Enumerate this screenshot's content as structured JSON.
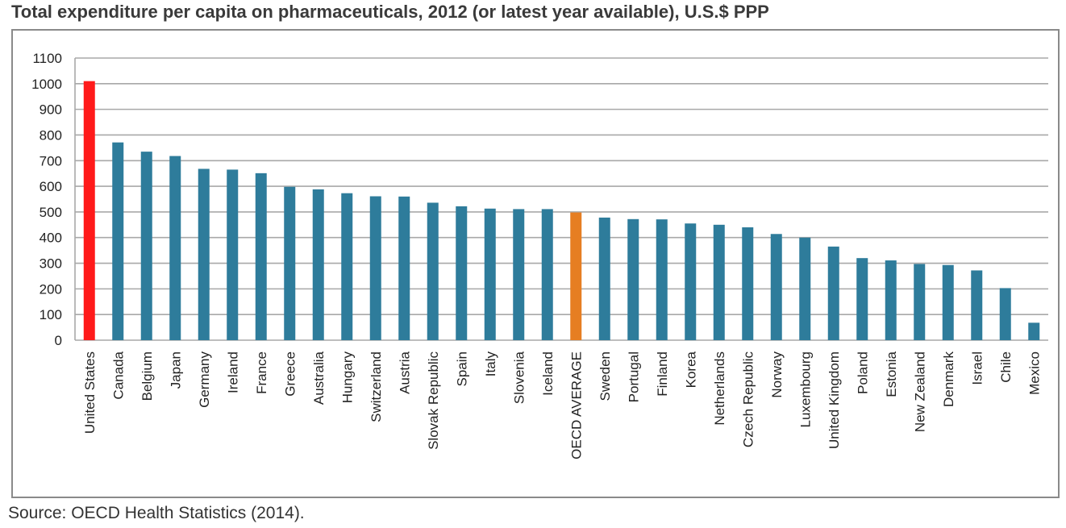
{
  "title": "Total expenditure per capita on pharmaceuticals, 2012 (or latest year available), U.S.$ PPP",
  "source": "Source: OECD Health Statistics (2014).",
  "colors": {
    "default": "#2e7c9b",
    "highlight_us": "#ff1a1a",
    "highlight_avg": "#e67e22",
    "grid": "#a8a8a8",
    "frame": "#8a8a8a"
  },
  "chart_data": {
    "type": "bar",
    "title": "Total expenditure per capita on pharmaceuticals, 2012 (or latest year available), U.S.$ PPP",
    "xlabel": "",
    "ylabel": "",
    "ylim": [
      0,
      1100
    ],
    "yticks": [
      0,
      100,
      200,
      300,
      400,
      500,
      600,
      700,
      800,
      900,
      1000,
      1100
    ],
    "grid": true,
    "categories": [
      "United States",
      "Canada",
      "Belgium",
      "Japan",
      "Germany",
      "Ireland",
      "France",
      "Greece",
      "Australia",
      "Hungary",
      "Switzerland",
      "Austria",
      "Slovak Republic",
      "Spain",
      "Italy",
      "Slovenia",
      "Iceland",
      "OECD AVERAGE",
      "Sweden",
      "Portugal",
      "Finland",
      "Korea",
      "Netherlands",
      "Czech Republic",
      "Norway",
      "Luxembourg",
      "United Kingdom",
      "Poland",
      "Estonia",
      "New Zealand",
      "Denmark",
      "Israel",
      "Chile",
      "Mexico"
    ],
    "values": [
      1010,
      771,
      735,
      718,
      668,
      665,
      651,
      598,
      588,
      573,
      561,
      560,
      536,
      522,
      513,
      511,
      511,
      498,
      478,
      472,
      471,
      455,
      450,
      440,
      414,
      400,
      365,
      320,
      311,
      297,
      293,
      272,
      203,
      68
    ],
    "bar_colors": [
      "#ff1a1a",
      "#2e7c9b",
      "#2e7c9b",
      "#2e7c9b",
      "#2e7c9b",
      "#2e7c9b",
      "#2e7c9b",
      "#2e7c9b",
      "#2e7c9b",
      "#2e7c9b",
      "#2e7c9b",
      "#2e7c9b",
      "#2e7c9b",
      "#2e7c9b",
      "#2e7c9b",
      "#2e7c9b",
      "#2e7c9b",
      "#e67e22",
      "#2e7c9b",
      "#2e7c9b",
      "#2e7c9b",
      "#2e7c9b",
      "#2e7c9b",
      "#2e7c9b",
      "#2e7c9b",
      "#2e7c9b",
      "#2e7c9b",
      "#2e7c9b",
      "#2e7c9b",
      "#2e7c9b",
      "#2e7c9b",
      "#2e7c9b",
      "#2e7c9b",
      "#2e7c9b"
    ]
  }
}
